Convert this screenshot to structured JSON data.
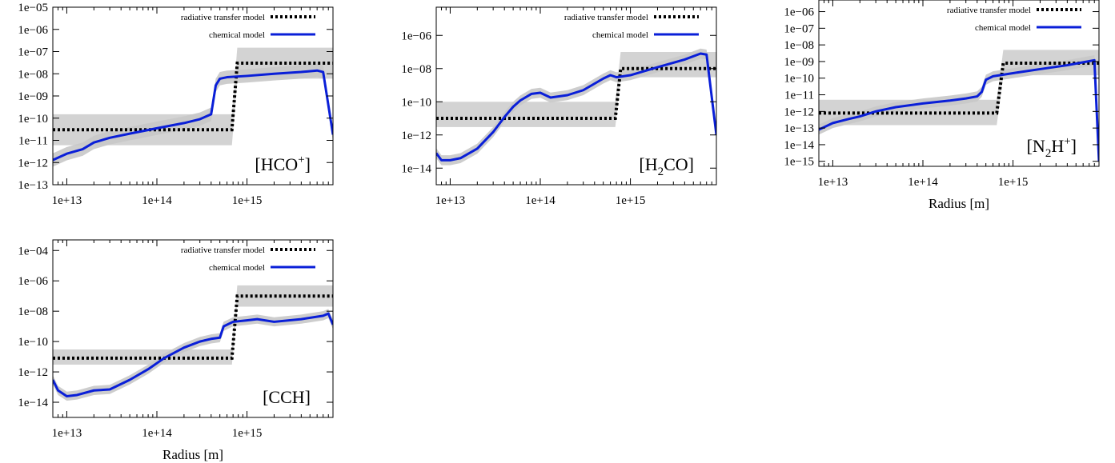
{
  "figure": {
    "xlabel": "Radius [m]"
  },
  "colors": {
    "band": "#d3d3d3",
    "rt_line": "#000000",
    "chem_line": "#0a1fd8",
    "chem_band": "#c8c8c8"
  },
  "legend": {
    "rt_label": "radiative transfer model",
    "chem_label": "chemical model"
  },
  "chart_data": [
    {
      "type": "line",
      "molecule": "HCO+",
      "mol_main": "[HCO",
      "mol_sup": "+",
      "mol_end": "]",
      "xscale": "log",
      "yscale": "log",
      "xlim": [
        7000000000000.0,
        9000000000000000.0
      ],
      "ylim": [
        1e-13,
        1e-05
      ],
      "xticks": [
        "1e+13",
        "1e+14",
        "1e+15"
      ],
      "yticks": [
        "1e-05",
        "1e-06",
        "1e-07",
        "1e-08",
        "1e-09",
        "1e-10",
        "1e-11",
        "1e-12",
        "1e-13"
      ],
      "xlabel": "",
      "series": [
        {
          "name": "radiative transfer model",
          "x": [
            7000000000000.0,
            66000000000000.0,
            260000000000000.0,
            680000000000000.0,
            780000000000000.0,
            3400000000000000.0,
            9000000000000000.0
          ],
          "y": [
            3e-11,
            3e-11,
            3e-11,
            3e-11,
            3e-08,
            3e-08,
            3e-08
          ],
          "band_upper": [
            1.5e-10,
            1.5e-10,
            1.5e-10,
            1.5e-10,
            1.5e-07,
            1.5e-07,
            1.5e-07
          ],
          "band_lower": [
            6e-12,
            6e-12,
            6e-12,
            6e-12,
            6e-09,
            6e-09,
            6e-09
          ]
        },
        {
          "name": "chemical model",
          "x": [
            7000000000000.0,
            10000000000000.0,
            15000000000000.0,
            20000000000000.0,
            30000000000000.0,
            50000000000000.0,
            100000000000000.0,
            200000000000000.0,
            300000000000000.0,
            400000000000000.0,
            450000000000000.0,
            500000000000000.0,
            600000000000000.0,
            1000000000000000.0,
            2000000000000000.0,
            4000000000000000.0,
            6000000000000000.0,
            7000000000000000.0,
            9000000000000000.0
          ],
          "y": [
            1.3e-12,
            2.5e-12,
            4e-12,
            8e-12,
            1.3e-11,
            2e-11,
            3.5e-11,
            6e-11,
            9e-11,
            1.5e-10,
            3e-09,
            6e-09,
            7e-09,
            8e-09,
            1e-08,
            1.2e-08,
            1.4e-08,
            1.2e-08,
            1.8e-11
          ],
          "band_factor": 2.0
        }
      ]
    },
    {
      "type": "line",
      "molecule": "H2CO",
      "mol_main": "[H",
      "mol_sub": "2",
      "mol_end": "CO]",
      "xscale": "log",
      "yscale": "log",
      "xlim": [
        7000000000000.0,
        9000000000000000.0
      ],
      "ylim": [
        1e-15,
        5e-05
      ],
      "xticks": [
        "1e+13",
        "1e+14",
        "1e+15"
      ],
      "yticks": [
        "1e-06",
        "1e-08",
        "1e-10",
        "1e-12",
        "1e-14"
      ],
      "xlabel": "",
      "series": [
        {
          "name": "radiative transfer model",
          "x": [
            7000000000000.0,
            66000000000000.0,
            260000000000000.0,
            680000000000000.0,
            780000000000000.0,
            3400000000000000.0,
            9000000000000000.0
          ],
          "y": [
            1e-11,
            1e-11,
            1e-11,
            1e-11,
            1e-08,
            1e-08,
            1e-08
          ],
          "band_upper": [
            1e-10,
            1e-10,
            1e-10,
            1e-10,
            1e-07,
            1e-07,
            1e-07
          ],
          "band_lower": [
            3e-12,
            3e-12,
            3e-12,
            3e-12,
            3e-09,
            3e-09,
            3e-09
          ]
        },
        {
          "name": "chemical model",
          "x": [
            7000000000000.0,
            8000000000000.0,
            10000000000000.0,
            13000000000000.0,
            20000000000000.0,
            30000000000000.0,
            40000000000000.0,
            50000000000000.0,
            60000000000000.0,
            80000000000000.0,
            100000000000000.0,
            130000000000000.0,
            200000000000000.0,
            300000000000000.0,
            500000000000000.0,
            600000000000000.0,
            700000000000000.0,
            1000000000000000.0,
            2000000000000000.0,
            4000000000000000.0,
            6000000000000000.0,
            7000000000000000.0,
            9000000000000000.0
          ],
          "y": [
            8e-14,
            3e-14,
            3e-14,
            4e-14,
            1.5e-13,
            1.5e-12,
            1.2e-11,
            5e-11,
            1.2e-10,
            3e-10,
            3.5e-10,
            1.8e-10,
            2.5e-10,
            5e-10,
            2.5e-09,
            4e-09,
            3e-09,
            4e-09,
            1.2e-08,
            3.5e-08,
            8e-08,
            7e-08,
            1e-12
          ],
          "band_factor": 2.0
        }
      ]
    },
    {
      "type": "line",
      "molecule": "N2H+",
      "mol_main": "[N",
      "mol_sub": "2",
      "mol_mid": "H",
      "mol_sup": "+",
      "mol_end": "]",
      "xscale": "log",
      "yscale": "log",
      "xlim": [
        7000000000000.0,
        9000000000000000.0
      ],
      "ylim": [
        5e-16,
        5e-06
      ],
      "xticks": [
        "1e+13",
        "1e+14",
        "1e+15"
      ],
      "yticks": [
        "1e-06",
        "1e-07",
        "1e-08",
        "1e-09",
        "1e-10",
        "1e-11",
        "1e-12",
        "1e-13",
        "1e-14",
        "1e-15"
      ],
      "xlabel": "Radius [m]",
      "series": [
        {
          "name": "radiative transfer model",
          "x": [
            7000000000000.0,
            64000000000000.0,
            260000000000000.0,
            660000000000000.0,
            780000000000000.0,
            3400000000000000.0,
            9000000000000000.0
          ],
          "y": [
            8e-13,
            8e-13,
            8e-13,
            8e-13,
            8e-10,
            8e-10,
            8e-10
          ],
          "band_upper": [
            5e-12,
            5e-12,
            5e-12,
            5e-12,
            5e-09,
            5e-09,
            5e-09
          ],
          "band_lower": [
            1.5e-13,
            1.5e-13,
            1.5e-13,
            1.5e-13,
            1.5e-10,
            1.5e-10,
            1.5e-10
          ]
        },
        {
          "name": "chemical model",
          "x": [
            7000000000000.0,
            10000000000000.0,
            15000000000000.0,
            20000000000000.0,
            30000000000000.0,
            50000000000000.0,
            100000000000000.0,
            200000000000000.0,
            300000000000000.0,
            400000000000000.0,
            450000000000000.0,
            500000000000000.0,
            600000000000000.0,
            1000000000000000.0,
            2000000000000000.0,
            4000000000000000.0,
            6000000000000000.0,
            8000000000000000.0,
            9000000000000000.0
          ],
          "y": [
            8e-14,
            2e-13,
            3.5e-13,
            5e-13,
            1e-12,
            1.8e-12,
            3e-12,
            4.5e-12,
            6e-12,
            8e-12,
            1.5e-11,
            8e-11,
            1.3e-10,
            2e-10,
            3.5e-10,
            6e-10,
            9e-10,
            1.2e-09,
            1e-15
          ],
          "band_factor": 2.0
        }
      ]
    },
    {
      "type": "line",
      "molecule": "CCH",
      "mol_main": "[CCH]",
      "xscale": "log",
      "yscale": "log",
      "xlim": [
        7000000000000.0,
        9000000000000000.0
      ],
      "ylim": [
        1e-15,
        0.0005
      ],
      "xticks": [
        "1e+13",
        "1e+14",
        "1e+15"
      ],
      "yticks": [
        "1e-04",
        "1e-06",
        "1e-08",
        "1e-10",
        "1e-12",
        "1e-14"
      ],
      "xlabel": "Radius [m]",
      "series": [
        {
          "name": "radiative transfer model",
          "x": [
            7000000000000.0,
            66000000000000.0,
            260000000000000.0,
            680000000000000.0,
            780000000000000.0,
            3400000000000000.0,
            9000000000000000.0
          ],
          "y": [
            8e-12,
            8e-12,
            8e-12,
            8e-12,
            1e-07,
            1e-07,
            1e-07
          ],
          "band_upper": [
            3e-11,
            3e-11,
            3e-11,
            3e-11,
            5e-07,
            5e-07,
            5e-07
          ],
          "band_lower": [
            3e-12,
            3e-12,
            3e-12,
            3e-12,
            2e-08,
            2e-08,
            2e-08
          ]
        },
        {
          "name": "chemical model",
          "x": [
            7000000000000.0,
            8000000000000.0,
            10000000000000.0,
            13000000000000.0,
            20000000000000.0,
            30000000000000.0,
            50000000000000.0,
            80000000000000.0,
            120000000000000.0,
            200000000000000.0,
            300000000000000.0,
            400000000000000.0,
            500000000000000.0,
            550000000000000.0,
            700000000000000.0,
            1000000000000000.0,
            1300000000000000.0,
            2000000000000000.0,
            4000000000000000.0,
            7000000000000000.0,
            8000000000000000.0,
            9000000000000000.0
          ],
          "y": [
            3e-13,
            6e-14,
            2.5e-14,
            3e-14,
            6e-14,
            7e-14,
            3e-13,
            1.5e-12,
            8e-12,
            4e-11,
            1e-10,
            1.5e-10,
            1.8e-10,
            1e-09,
            2e-09,
            2.5e-09,
            3e-09,
            2e-09,
            3e-09,
            5e-09,
            7e-09,
            1.3e-09
          ],
          "band_factor": 2.0
        }
      ]
    }
  ]
}
